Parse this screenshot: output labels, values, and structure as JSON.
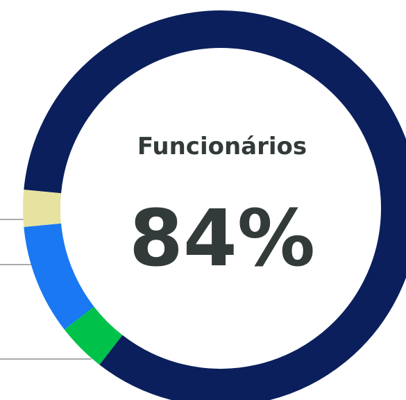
{
  "chart_data": {
    "type": "donut",
    "title": "Funcionários",
    "categories": [
      null,
      null,
      null,
      null
    ],
    "values": [
      84,
      4,
      9,
      3
    ],
    "value_labels": [
      "84%",
      null,
      null,
      null
    ],
    "colors": [
      "#0b1f5c",
      "#00c24b",
      "#1a78f2",
      "#e6e3a1"
    ]
  }
}
